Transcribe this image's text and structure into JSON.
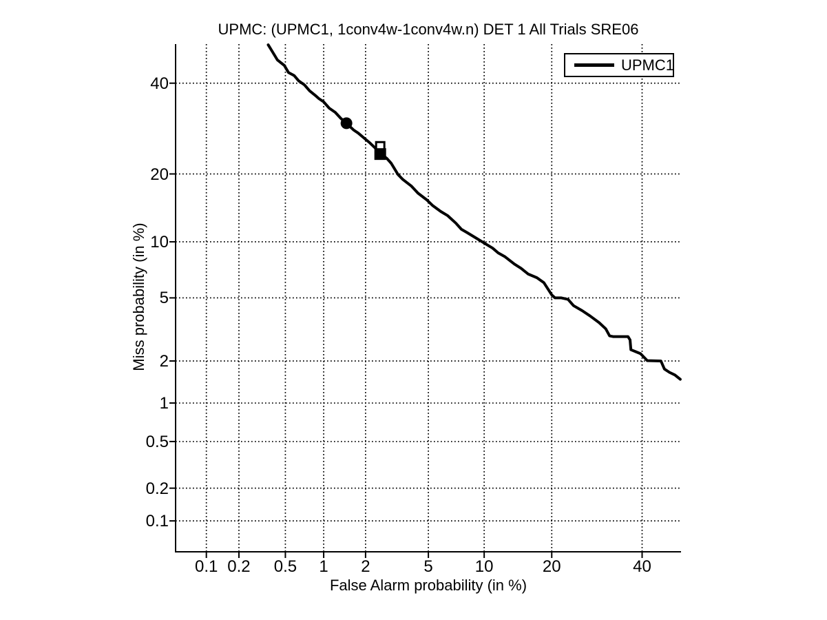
{
  "chart_data": {
    "type": "line",
    "plot_kind": "DET curve (normal-deviate scale on both axes)",
    "title": "UPMC: (UPMC1, 1conv4w-1conv4w.n) DET 1 All Trials SRE06",
    "xlabel": "False Alarm probability (in %)",
    "ylabel": "Miss probability (in %)",
    "xlim": [
      0.05,
      50
    ],
    "ylim": [
      0.05,
      50
    ],
    "xticks": [
      0.1,
      0.2,
      0.5,
      1,
      2,
      5,
      10,
      20,
      40
    ],
    "xtick_labels": [
      "0.1",
      "0.2",
      "0.5",
      "1",
      "2",
      "5",
      "10",
      "20",
      "40"
    ],
    "yticks": [
      40,
      20,
      10,
      5,
      2,
      1,
      0.5,
      0.2,
      0.1
    ],
    "ytick_labels": [
      "40",
      "20",
      "10",
      "5",
      "2",
      "1",
      "0.5",
      "0.2",
      "0.1"
    ],
    "grid": "dotted",
    "axis_color": "#000000",
    "background_color": "#ffffff",
    "legend": {
      "position": "top-right",
      "entries": [
        {
          "label": "UPMC1",
          "color": "#000000"
        }
      ]
    },
    "series": [
      {
        "name": "UPMC1",
        "color": "#000000",
        "line_width": 4,
        "points_units": "percent [false_alarm, miss]",
        "points": [
          [
            0.36,
            49.8
          ],
          [
            0.4,
            47.5
          ],
          [
            0.43,
            45.9
          ],
          [
            0.49,
            44.5
          ],
          [
            0.53,
            42.7
          ],
          [
            0.59,
            41.9
          ],
          [
            0.64,
            40.6
          ],
          [
            0.71,
            39.6
          ],
          [
            0.78,
            38.1
          ],
          [
            0.86,
            37.0
          ],
          [
            0.92,
            36.2
          ],
          [
            1.0,
            35.4
          ],
          [
            1.1,
            33.9
          ],
          [
            1.22,
            32.9
          ],
          [
            1.34,
            31.5
          ],
          [
            1.47,
            30.4
          ],
          [
            1.65,
            28.9
          ],
          [
            1.78,
            28.2
          ],
          [
            1.94,
            27.2
          ],
          [
            2.14,
            26.1
          ],
          [
            2.33,
            25.0
          ],
          [
            2.51,
            24.0
          ],
          [
            2.78,
            22.9
          ],
          [
            2.96,
            22.0
          ],
          [
            3.27,
            19.9
          ],
          [
            3.51,
            19.0
          ],
          [
            3.95,
            17.9
          ],
          [
            4.34,
            16.7
          ],
          [
            4.91,
            15.6
          ],
          [
            5.28,
            14.8
          ],
          [
            5.89,
            13.9
          ],
          [
            6.44,
            13.3
          ],
          [
            7.13,
            12.3
          ],
          [
            7.64,
            11.5
          ],
          [
            8.17,
            11.1
          ],
          [
            9.16,
            10.4
          ],
          [
            10.1,
            9.8
          ],
          [
            11.0,
            9.3
          ],
          [
            11.7,
            8.8
          ],
          [
            12.6,
            8.4
          ],
          [
            13.9,
            7.7
          ],
          [
            14.9,
            7.3
          ],
          [
            16.0,
            6.8
          ],
          [
            17.4,
            6.5
          ],
          [
            18.6,
            6.1
          ],
          [
            20.0,
            5.2
          ],
          [
            20.6,
            5.0
          ],
          [
            21.8,
            5.0
          ],
          [
            23.1,
            4.9
          ],
          [
            24.2,
            4.5
          ],
          [
            26.0,
            4.2
          ],
          [
            27.7,
            3.9
          ],
          [
            29.7,
            3.55
          ],
          [
            31.2,
            3.25
          ],
          [
            32.1,
            2.93
          ],
          [
            32.9,
            2.9
          ],
          [
            36.5,
            2.9
          ],
          [
            37.0,
            2.76
          ],
          [
            37.2,
            2.38
          ],
          [
            38.4,
            2.31
          ],
          [
            39.6,
            2.24
          ],
          [
            41.3,
            2.01
          ],
          [
            44.8,
            2.0
          ],
          [
            45.7,
            1.76
          ],
          [
            47.0,
            1.67
          ],
          [
            48.4,
            1.6
          ],
          [
            49.8,
            1.49
          ]
        ]
      }
    ],
    "markers": [
      {
        "shape": "filled-circle",
        "false_alarm": 1.47,
        "miss": 30.4,
        "size": 17,
        "color": "#000000"
      },
      {
        "shape": "open-square",
        "false_alarm": 2.51,
        "miss": 25.4,
        "size": 15,
        "color": "#000000"
      },
      {
        "shape": "filled-square",
        "false_alarm": 2.51,
        "miss": 23.8,
        "size": 17,
        "color": "#000000"
      }
    ]
  }
}
